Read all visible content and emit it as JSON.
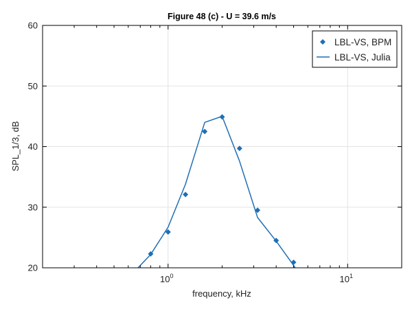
{
  "chart_data": {
    "type": "line",
    "title": "Figure 48 (c) - U = 39.6 m/s",
    "xlabel": "frequency, kHz",
    "ylabel": "SPL_1/3, dB",
    "xscale": "log",
    "xlim": [
      0.2,
      20
    ],
    "ylim": [
      20,
      60
    ],
    "x_tick_values": [
      1,
      10
    ],
    "x_tick_labels": [
      {
        "base": "10",
        "exp": "0"
      },
      {
        "base": "10",
        "exp": "1"
      }
    ],
    "y_ticks": [
      20,
      30,
      40,
      50,
      60
    ],
    "grid": true,
    "legend_position": "top-right",
    "series": [
      {
        "name": "LBL-VS, BPM",
        "style": "markers",
        "marker": "diamond",
        "color": "#1f6fb4",
        "x": [
          0.8,
          1.0,
          1.25,
          1.6,
          2.0,
          2.5,
          3.15,
          4.0,
          5.0
        ],
        "y": [
          22.3,
          25.9,
          32.1,
          42.5,
          44.9,
          39.7,
          29.5,
          24.5,
          20.9
        ]
      },
      {
        "name": "LBL-VS, Julia",
        "style": "line",
        "color": "#1f6fb4",
        "x": [
          0.68,
          0.8,
          1.0,
          1.25,
          1.6,
          2.0,
          2.5,
          3.15,
          4.0,
          5.0,
          5.1
        ],
        "y": [
          20.0,
          22.2,
          26.7,
          33.8,
          44.0,
          45.0,
          37.6,
          28.3,
          24.4,
          20.4,
          20.0
        ]
      }
    ]
  }
}
